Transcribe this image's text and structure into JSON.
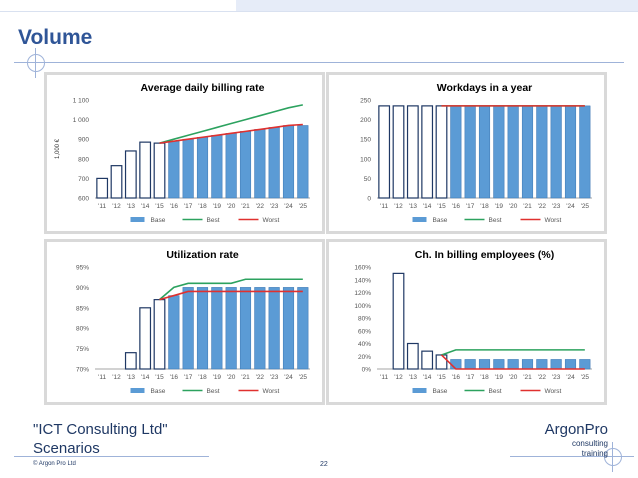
{
  "page": {
    "title": "Volume",
    "footer_line1": "\"ICT Consulting Ltd\"",
    "footer_line2": "Scenarios",
    "copyright": "© Argon Pro Ltd",
    "page_number": "22",
    "brand_name": "ArgonPro",
    "brand_line1": "consulting",
    "brand_line2": "training"
  },
  "colors": {
    "title": "#2f5597",
    "bar_fill": "#5b9bd5",
    "bar_outline": "#1f3864",
    "best": "#2ca25f",
    "worst": "#e0312f"
  },
  "chart_data": [
    {
      "type": "bar",
      "title": "Average daily billing rate",
      "ylabel": "1,000 €",
      "ylim": [
        600,
        1100
      ],
      "yticks": [
        600,
        700,
        800,
        900,
        1000,
        1100
      ],
      "ytick_labels": [
        "600",
        "700",
        "800",
        "900",
        "1 000",
        "1 100"
      ],
      "categories": [
        "'11",
        "'12",
        "'13",
        "'14",
        "'15",
        "'16",
        "'17",
        "'18",
        "'19",
        "'20",
        "'21",
        "'22",
        "'23",
        "'24",
        "'25"
      ],
      "projection_start_index": 5,
      "series": [
        {
          "name": "Base",
          "kind": "bar",
          "values": [
            700,
            765,
            840,
            885,
            880,
            890,
            900,
            910,
            920,
            930,
            940,
            950,
            960,
            970,
            970
          ]
        },
        {
          "name": "Best",
          "kind": "line",
          "values": [
            null,
            null,
            null,
            null,
            880,
            900,
            920,
            940,
            960,
            980,
            1000,
            1020,
            1040,
            1060,
            1075
          ]
        },
        {
          "name": "Worst",
          "kind": "line",
          "values": [
            null,
            null,
            null,
            null,
            880,
            890,
            900,
            910,
            920,
            930,
            940,
            950,
            960,
            970,
            975
          ]
        }
      ],
      "legend": "bottom"
    },
    {
      "type": "bar",
      "title": "Workdays in a year",
      "ylabel": "",
      "ylim": [
        0,
        250
      ],
      "yticks": [
        0,
        50,
        100,
        150,
        200,
        250
      ],
      "ytick_labels": [
        "0",
        "50",
        "100",
        "150",
        "200",
        "250"
      ],
      "categories": [
        "'11",
        "'12",
        "'13",
        "'14",
        "'15",
        "'16",
        "'17",
        "'18",
        "'19",
        "'20",
        "'21",
        "'22",
        "'23",
        "'24",
        "'25"
      ],
      "projection_start_index": 5,
      "series": [
        {
          "name": "Base",
          "kind": "bar",
          "values": [
            235,
            235,
            235,
            235,
            235,
            235,
            235,
            235,
            235,
            235,
            235,
            235,
            235,
            235,
            235
          ]
        },
        {
          "name": "Best",
          "kind": "line",
          "values": [
            null,
            null,
            null,
            null,
            235,
            235,
            235,
            235,
            235,
            235,
            235,
            235,
            235,
            235,
            235
          ]
        },
        {
          "name": "Worst",
          "kind": "line",
          "values": [
            null,
            null,
            null,
            null,
            235,
            235,
            235,
            235,
            235,
            235,
            235,
            235,
            235,
            235,
            235
          ]
        }
      ],
      "legend": "bottom"
    },
    {
      "type": "bar",
      "title": "Utilization rate",
      "ylabel": "",
      "ylim": [
        70,
        95
      ],
      "yticks": [
        70,
        75,
        80,
        85,
        90,
        95
      ],
      "ytick_labels": [
        "70%",
        "75%",
        "80%",
        "85%",
        "90%",
        "95%"
      ],
      "categories": [
        "'11",
        "'12",
        "'13",
        "'14",
        "'15",
        "'16",
        "'17",
        "'18",
        "'19",
        "'20",
        "'21",
        "'22",
        "'23",
        "'24",
        "'25"
      ],
      "projection_start_index": 5,
      "series": [
        {
          "name": "Base",
          "kind": "bar",
          "values": [
            70,
            70,
            74,
            85,
            87,
            88,
            90,
            90,
            90,
            90,
            90,
            90,
            90,
            90,
            90
          ]
        },
        {
          "name": "Best",
          "kind": "line",
          "values": [
            null,
            null,
            null,
            null,
            87,
            90,
            91,
            91,
            91,
            91,
            92,
            92,
            92,
            92,
            92
          ]
        },
        {
          "name": "Worst",
          "kind": "line",
          "values": [
            null,
            null,
            null,
            null,
            87,
            88,
            89,
            89,
            89,
            89,
            89,
            89,
            89,
            89,
            89
          ]
        }
      ],
      "legend": "bottom"
    },
    {
      "type": "bar",
      "title": "Ch. In billing employees (%)",
      "ylabel": "",
      "ylim": [
        0,
        160
      ],
      "yticks": [
        0,
        20,
        40,
        60,
        80,
        100,
        120,
        140,
        160
      ],
      "ytick_labels": [
        "0%",
        "20%",
        "40%",
        "60%",
        "80%",
        "100%",
        "120%",
        "140%",
        "160%"
      ],
      "categories": [
        "'11",
        "'12",
        "'13",
        "'14",
        "'15",
        "'16",
        "'17",
        "'18",
        "'19",
        "'20",
        "'21",
        "'22",
        "'23",
        "'24",
        "'25"
      ],
      "projection_start_index": 5,
      "series": [
        {
          "name": "Base",
          "kind": "bar",
          "values": [
            0,
            150,
            40,
            28,
            22,
            15,
            15,
            15,
            15,
            15,
            15,
            15,
            15,
            15,
            15
          ]
        },
        {
          "name": "Best",
          "kind": "line",
          "values": [
            null,
            null,
            null,
            null,
            22,
            30,
            30,
            30,
            30,
            30,
            30,
            30,
            30,
            30,
            30
          ]
        },
        {
          "name": "Worst",
          "kind": "line",
          "values": [
            null,
            null,
            null,
            null,
            22,
            0,
            0,
            0,
            0,
            0,
            0,
            0,
            0,
            0,
            0
          ]
        }
      ],
      "legend": "bottom"
    }
  ]
}
